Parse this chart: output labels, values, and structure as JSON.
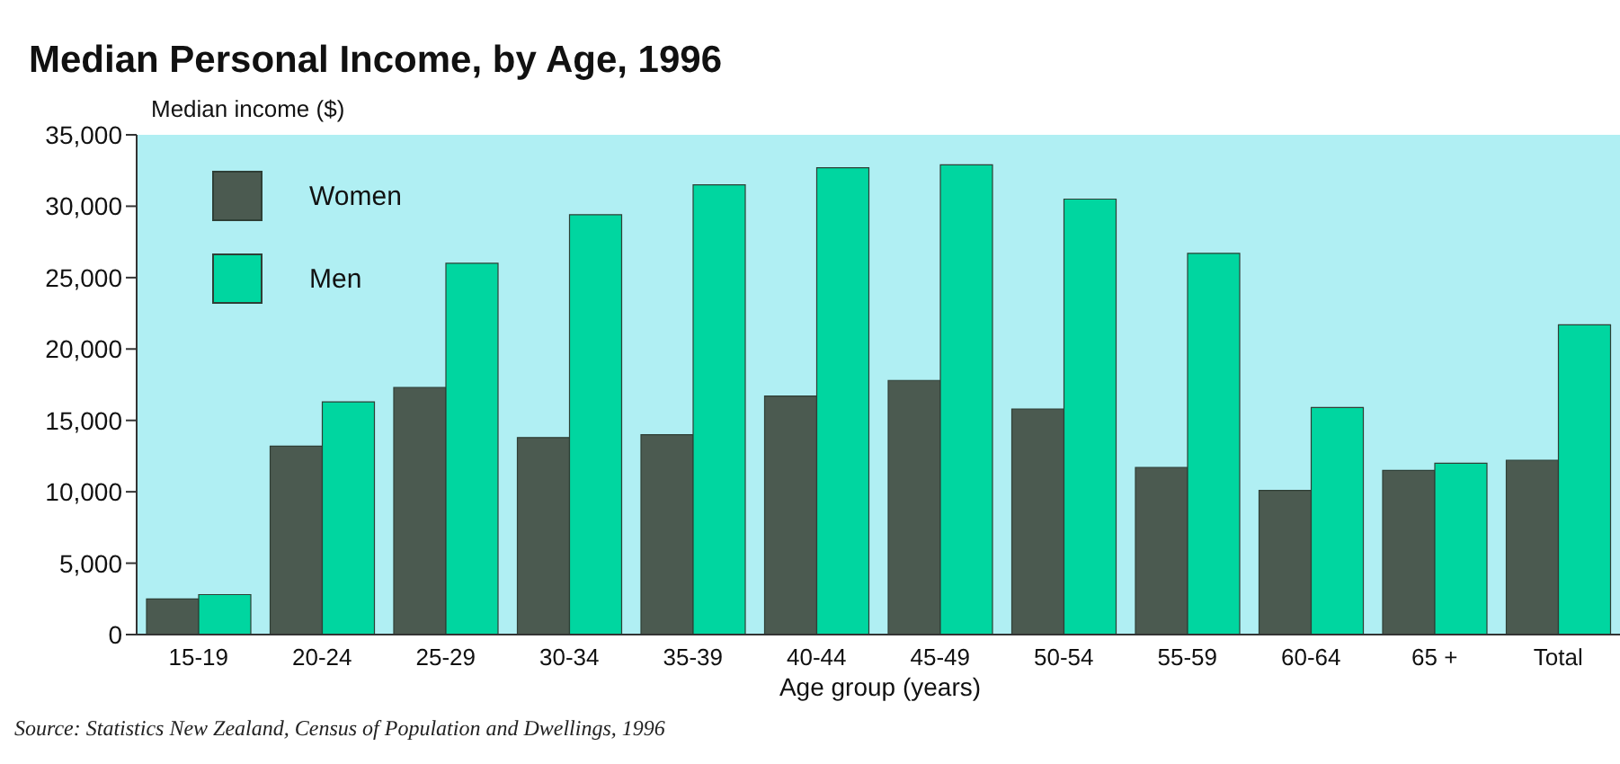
{
  "chart_data": {
    "type": "bar",
    "title": "Median Personal Income, by Age, 1996",
    "ylabel": "Median income ($)",
    "xlabel": "Age group (years)",
    "annotations": [
      "Source: Statistics New Zealand, Census of Population and Dwellings, 1996"
    ],
    "categories": [
      "15-19",
      "20-24",
      "25-29",
      "30-34",
      "35-39",
      "40-44",
      "45-49",
      "50-54",
      "55-59",
      "60-64",
      "65 +",
      "Total"
    ],
    "series": [
      {
        "name": "Women",
        "color": "#4b5a50",
        "values": [
          2500,
          13200,
          17300,
          13800,
          14000,
          16700,
          17800,
          15800,
          11700,
          10100,
          11500,
          12200
        ]
      },
      {
        "name": "Men",
        "color": "#00d6a0",
        "values": [
          2800,
          16300,
          26000,
          29400,
          31500,
          32700,
          32900,
          30500,
          26700,
          15900,
          12000,
          21700
        ]
      }
    ],
    "ylim": [
      0,
      35000
    ],
    "yticks": [
      {
        "value": 0,
        "label": "0"
      },
      {
        "value": 5000,
        "label": "5,000"
      },
      {
        "value": 10000,
        "label": "10,000"
      },
      {
        "value": 15000,
        "label": "15,000"
      },
      {
        "value": 20000,
        "label": "20,000"
      },
      {
        "value": 25000,
        "label": "25,000"
      },
      {
        "value": 30000,
        "label": "30,000"
      },
      {
        "value": 35000,
        "label": "35,000"
      }
    ],
    "legend": "top left",
    "grid": false
  }
}
